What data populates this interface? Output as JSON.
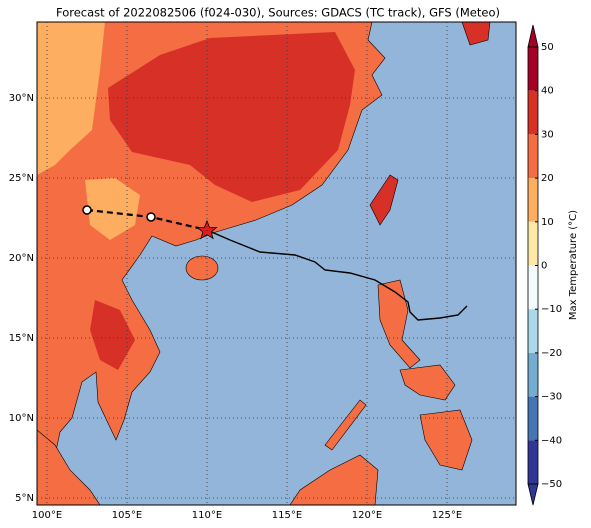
{
  "title": "Forecast of 2022082506 (f024-030), Sources: GDACS (TC track), GFS (Meteo)",
  "lon_labels": [
    "100°E",
    "105°E",
    "110°E",
    "115°E",
    "120°E",
    "125°E"
  ],
  "lat_labels": [
    "5°N",
    "10°N",
    "15°N",
    "20°N",
    "25°N",
    "30°N"
  ],
  "colorbar": {
    "label": "Max Temperature (°C)",
    "ticks": [
      "50",
      "40",
      "30",
      "20",
      "10",
      "0",
      "−10",
      "−20",
      "−30",
      "−40",
      "−50"
    ]
  }
}
